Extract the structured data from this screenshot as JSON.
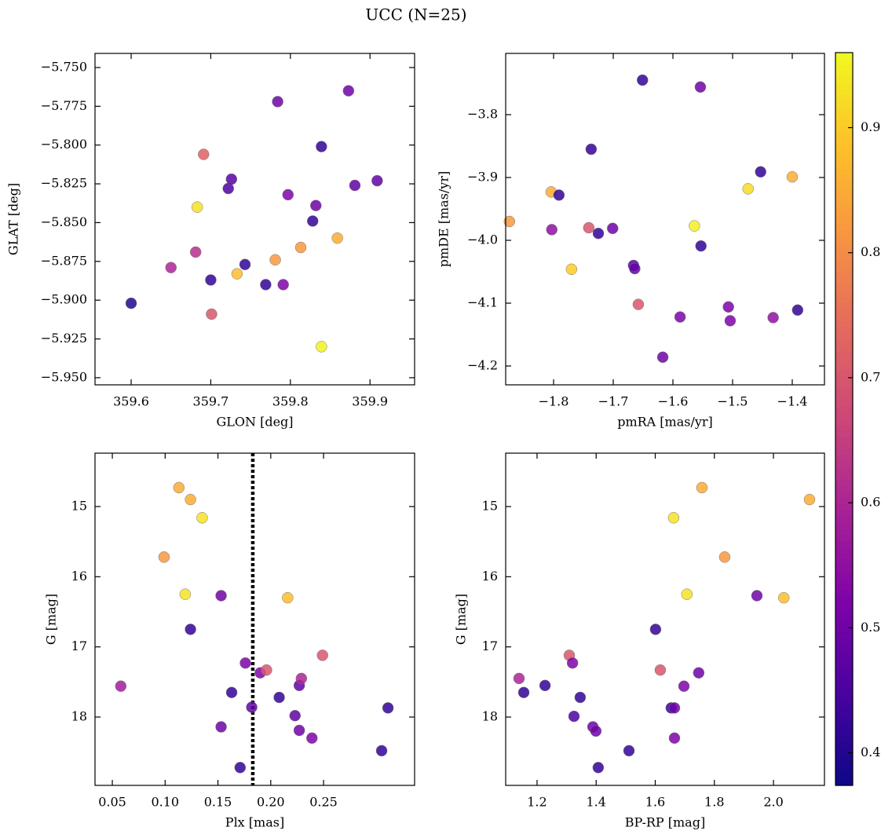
{
  "title": "UCC (N=25)",
  "chart_data": [
    {
      "type": "scatter",
      "xlabel": "GLON [deg]",
      "ylabel": "GLAT [deg]",
      "x": [
        359.6,
        359.65,
        359.681,
        359.683,
        359.691,
        359.7,
        359.701,
        359.722,
        359.726,
        359.733,
        359.743,
        359.769,
        359.781,
        359.784,
        359.791,
        359.797,
        359.813,
        359.828,
        359.832,
        359.839,
        359.839,
        359.859,
        359.873,
        359.881,
        359.909
      ],
      "y": [
        -5.902,
        -5.879,
        -5.869,
        -5.84,
        -5.806,
        -5.887,
        -5.909,
        -5.828,
        -5.822,
        -5.883,
        -5.877,
        -5.89,
        -5.874,
        -5.772,
        -5.89,
        -5.832,
        -5.866,
        -5.849,
        -5.839,
        -5.801,
        -5.93,
        -5.86,
        -5.765,
        -5.826,
        -5.823
      ],
      "c": [
        0.4,
        0.6,
        0.62,
        0.93,
        0.72,
        0.42,
        0.7,
        0.45,
        0.47,
        0.88,
        0.42,
        0.42,
        0.82,
        0.5,
        0.52,
        0.52,
        0.82,
        0.42,
        0.5,
        0.42,
        0.95,
        0.85,
        0.5,
        0.48,
        0.48
      ],
      "xlim": [
        359.5546,
        359.956
      ],
      "ylim": [
        -5.9546,
        -5.7409
      ],
      "xticks": [
        359.6,
        359.7,
        359.8,
        359.9
      ],
      "yticks": [
        {
          "value": -5.95,
          "label": "−5.950"
        },
        {
          "value": -5.925,
          "label": "−5.925"
        },
        {
          "value": -5.9,
          "label": "−5.900"
        },
        {
          "value": -5.875,
          "label": "−5.875"
        },
        {
          "value": -5.85,
          "label": "−5.850"
        },
        {
          "value": -5.825,
          "label": "−5.825"
        },
        {
          "value": -5.8,
          "label": "−5.800"
        },
        {
          "value": -5.775,
          "label": "−5.775"
        },
        {
          "value": -5.75,
          "label": "−5.750"
        }
      ]
    },
    {
      "type": "scatter",
      "xlabel": "pmRA [mas/yr]",
      "ylabel": "pmDE [mas/yr]",
      "x": [
        -1.874,
        -1.804,
        -1.791,
        -1.803,
        -1.77,
        -1.741,
        -1.737,
        -1.725,
        -1.701,
        -1.666,
        -1.664,
        -1.658,
        -1.651,
        -1.588,
        -1.617,
        -1.564,
        -1.554,
        -1.553,
        -1.507,
        -1.504,
        -1.474,
        -1.453,
        -1.432,
        -1.4,
        -1.391
      ],
      "y": [
        -3.97,
        -3.923,
        -3.928,
        -3.983,
        -4.046,
        -3.98,
        -3.855,
        -3.989,
        -3.981,
        -4.04,
        -4.045,
        -4.102,
        -3.745,
        -4.122,
        -4.186,
        -3.977,
        -3.756,
        -4.009,
        -4.106,
        -4.128,
        -3.918,
        -3.891,
        -4.123,
        -3.899,
        -4.111
      ],
      "c": [
        0.82,
        0.85,
        0.42,
        0.55,
        0.9,
        0.7,
        0.42,
        0.42,
        0.5,
        0.46,
        0.48,
        0.7,
        0.42,
        0.52,
        0.5,
        0.95,
        0.5,
        0.42,
        0.52,
        0.52,
        0.92,
        0.42,
        0.55,
        0.85,
        0.42
      ],
      "xlim": [
        -1.8803,
        -1.346
      ],
      "ylim": [
        -4.23,
        -3.7025
      ],
      "xticks": [
        {
          "value": -1.8,
          "label": "−1.8"
        },
        {
          "value": -1.7,
          "label": "−1.7"
        },
        {
          "value": -1.6,
          "label": "−1.6"
        },
        {
          "value": -1.5,
          "label": "−1.5"
        },
        {
          "value": -1.4,
          "label": "−1.4"
        }
      ],
      "yticks": [
        {
          "value": -4.2,
          "label": "−4.2"
        },
        {
          "value": -4.1,
          "label": "−4.1"
        },
        {
          "value": -4.0,
          "label": "−4.0"
        },
        {
          "value": -3.9,
          "label": "−3.9"
        },
        {
          "value": -3.8,
          "label": "−3.8"
        }
      ]
    },
    {
      "type": "scatter",
      "xlabel": "Plx [mas]",
      "ylabel": "G [mag]",
      "x": [
        0.058,
        0.099,
        0.113,
        0.124,
        0.135,
        0.119,
        0.124,
        0.153,
        0.153,
        0.163,
        0.171,
        0.176,
        0.182,
        0.19,
        0.196,
        0.208,
        0.216,
        0.223,
        0.227,
        0.227,
        0.229,
        0.239,
        0.249,
        0.305,
        0.311
      ],
      "y": [
        17.56,
        15.72,
        14.73,
        14.9,
        15.16,
        16.25,
        16.75,
        16.27,
        18.14,
        17.65,
        18.72,
        17.23,
        17.86,
        17.37,
        17.33,
        17.72,
        16.3,
        17.98,
        18.19,
        17.55,
        17.45,
        18.3,
        17.12,
        18.48,
        17.87
      ],
      "c": [
        0.58,
        0.82,
        0.85,
        0.85,
        0.93,
        0.93,
        0.42,
        0.5,
        0.5,
        0.42,
        0.42,
        0.52,
        0.48,
        0.52,
        0.7,
        0.42,
        0.88,
        0.48,
        0.5,
        0.48,
        0.6,
        0.52,
        0.7,
        0.42,
        0.42
      ],
      "vline": 0.183,
      "xlim": [
        0.0336,
        0.3362
      ],
      "ylim": [
        18.974,
        14.239
      ],
      "xticks": [
        0.05,
        {
          "value": 0.1,
          "label": "0.10"
        },
        0.15,
        {
          "value": 0.2,
          "label": "0.20"
        },
        0.25
      ],
      "yticks": [
        15,
        16,
        17,
        18
      ]
    },
    {
      "type": "scatter",
      "xlabel": "BP-RP [mag]",
      "ylabel": "G [mag]",
      "x": [
        1.139,
        1.155,
        1.227,
        1.309,
        1.32,
        1.325,
        1.346,
        1.389,
        1.399,
        1.407,
        1.511,
        1.601,
        1.617,
        1.654,
        1.665,
        1.662,
        1.665,
        1.697,
        1.707,
        1.758,
        1.747,
        1.835,
        1.944,
        2.035,
        2.122
      ],
      "y": [
        17.45,
        17.65,
        17.55,
        17.12,
        17.23,
        17.99,
        17.72,
        18.14,
        18.2,
        18.72,
        18.48,
        16.75,
        17.33,
        17.87,
        17.87,
        15.16,
        18.3,
        17.56,
        16.25,
        14.73,
        17.37,
        15.72,
        16.27,
        16.3,
        14.9
      ],
      "c": [
        0.6,
        0.42,
        0.42,
        0.7,
        0.52,
        0.45,
        0.42,
        0.5,
        0.5,
        0.42,
        0.42,
        0.42,
        0.7,
        0.42,
        0.5,
        0.93,
        0.52,
        0.52,
        0.93,
        0.85,
        0.5,
        0.82,
        0.5,
        0.88,
        0.85
      ],
      "xlim": [
        1.0938,
        2.1726
      ],
      "ylim": [
        18.974,
        14.239
      ],
      "xticks": [
        1.2,
        1.4,
        1.6,
        1.8,
        {
          "value": 2.0,
          "label": "2.0"
        }
      ],
      "yticks": [
        15,
        16,
        17,
        18
      ]
    },
    {
      "type": "colorbar",
      "colormap": "plasma",
      "clim": [
        0.374,
        0.96
      ],
      "ticks": [
        0.4,
        0.5,
        0.6,
        0.7,
        0.8,
        0.9
      ]
    }
  ]
}
